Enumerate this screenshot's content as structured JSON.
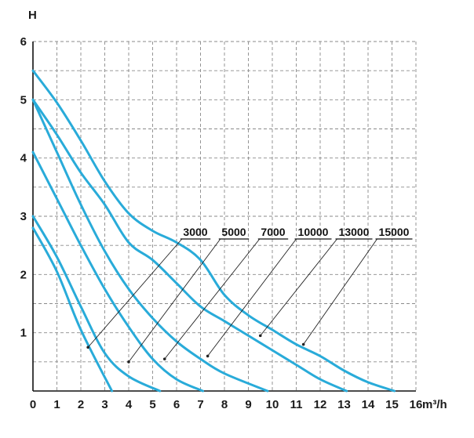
{
  "chart_data": {
    "type": "line",
    "ylabel": "H",
    "xlabel": "m³/h",
    "xlim": [
      0,
      16
    ],
    "ylim": [
      0,
      6
    ],
    "x_ticks": [
      0,
      1,
      2,
      3,
      4,
      5,
      6,
      7,
      8,
      9,
      10,
      11,
      12,
      13,
      14,
      15,
      16
    ],
    "y_ticks": [
      1,
      2,
      3,
      4,
      5,
      6
    ],
    "grid": true,
    "line_color": "#29abd9",
    "series": [
      {
        "name": "3000",
        "points": [
          [
            0,
            2.8
          ],
          [
            1,
            2.05
          ],
          [
            2,
            1.05
          ],
          [
            3.3,
            0
          ]
        ],
        "leader_point": [
          2.3,
          0.75
        ]
      },
      {
        "name": "5000",
        "points": [
          [
            0,
            3.0
          ],
          [
            1,
            2.3
          ],
          [
            2,
            1.45
          ],
          [
            3,
            0.65
          ],
          [
            4,
            0.25
          ],
          [
            5.3,
            0
          ]
        ],
        "leader_point": [
          4.0,
          0.5
        ]
      },
      {
        "name": "7000",
        "points": [
          [
            0,
            4.1
          ],
          [
            1,
            3.3
          ],
          [
            2,
            2.5
          ],
          [
            3,
            1.75
          ],
          [
            4,
            1.1
          ],
          [
            5,
            0.55
          ],
          [
            6,
            0.2
          ],
          [
            7.1,
            0
          ]
        ],
        "leader_point": [
          5.5,
          0.55
        ]
      },
      {
        "name": "10000",
        "points": [
          [
            0,
            5.0
          ],
          [
            1,
            4.1
          ],
          [
            2,
            3.2
          ],
          [
            3,
            2.4
          ],
          [
            4,
            1.75
          ],
          [
            5,
            1.25
          ],
          [
            6,
            0.85
          ],
          [
            7,
            0.55
          ],
          [
            8,
            0.3
          ],
          [
            9.8,
            0
          ]
        ],
        "leader_point": [
          7.3,
          0.6
        ]
      },
      {
        "name": "13000",
        "points": [
          [
            0,
            5.0
          ],
          [
            1,
            4.4
          ],
          [
            2,
            3.75
          ],
          [
            3,
            3.2
          ],
          [
            4,
            2.55
          ],
          [
            5,
            2.25
          ],
          [
            6,
            1.85
          ],
          [
            7,
            1.45
          ],
          [
            8,
            1.2
          ],
          [
            9,
            0.95
          ],
          [
            10,
            0.7
          ],
          [
            11,
            0.45
          ],
          [
            12,
            0.2
          ],
          [
            13.1,
            0
          ]
        ],
        "leader_point": [
          9.5,
          0.95
        ]
      },
      {
        "name": "15000",
        "points": [
          [
            0,
            5.5
          ],
          [
            1,
            4.95
          ],
          [
            2,
            4.3
          ],
          [
            3,
            3.6
          ],
          [
            4,
            3.05
          ],
          [
            5,
            2.75
          ],
          [
            6,
            2.55
          ],
          [
            7,
            2.25
          ],
          [
            8,
            1.65
          ],
          [
            9,
            1.3
          ],
          [
            10,
            1.05
          ],
          [
            11,
            0.8
          ],
          [
            12,
            0.6
          ],
          [
            13,
            0.35
          ],
          [
            14,
            0.15
          ],
          [
            15.1,
            0
          ]
        ],
        "leader_point": [
          11.3,
          0.8
        ]
      }
    ]
  }
}
